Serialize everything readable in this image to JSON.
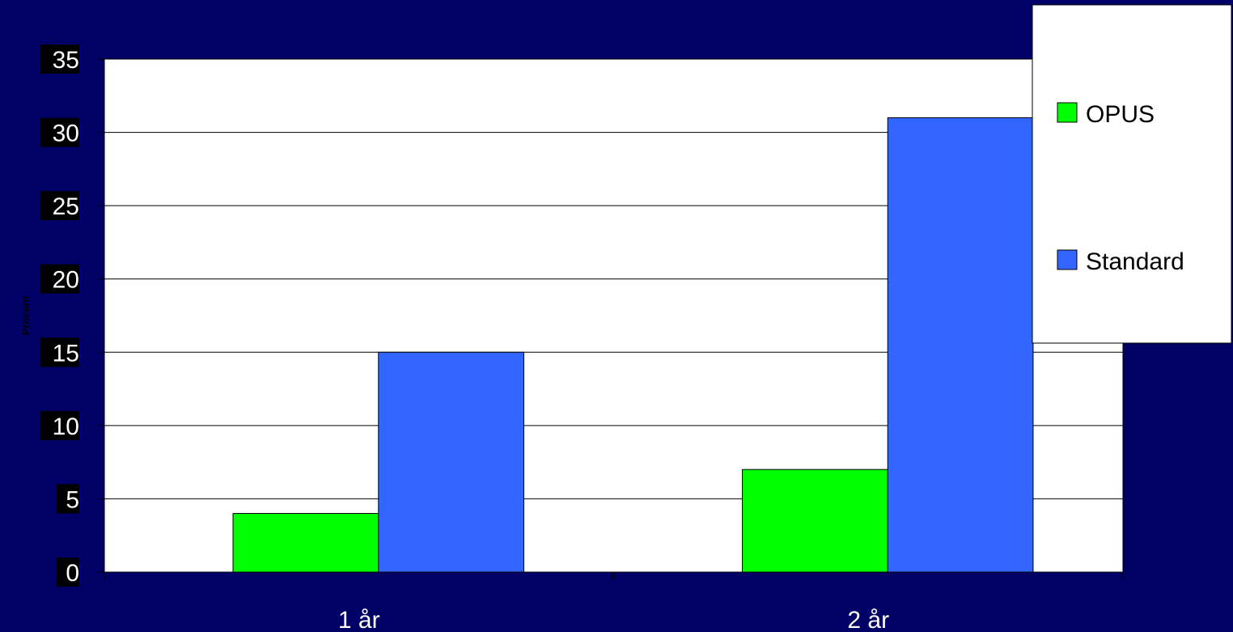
{
  "chart_data": {
    "type": "bar",
    "categories": [
      "1 år",
      "2 år"
    ],
    "series": [
      {
        "name": "OPUS",
        "values": [
          4,
          7
        ],
        "color": "#00ff00"
      },
      {
        "name": "Standard",
        "values": [
          15,
          31
        ],
        "color": "#3366ff"
      }
    ],
    "ylabel": "Procent",
    "ylim": [
      0,
      35
    ],
    "yticks": [
      "0",
      "5",
      "10",
      "15",
      "20",
      "25",
      "30",
      "35"
    ],
    "grid": true,
    "legend_position": "right",
    "colors": {
      "background": "#000066",
      "plot_area": "#ffffff",
      "gridline": "#000000",
      "axis_text": "#000000",
      "category_text": "#ffffff",
      "tick_label_bg": "#000000",
      "tick_label_text": "#ffffff"
    }
  }
}
